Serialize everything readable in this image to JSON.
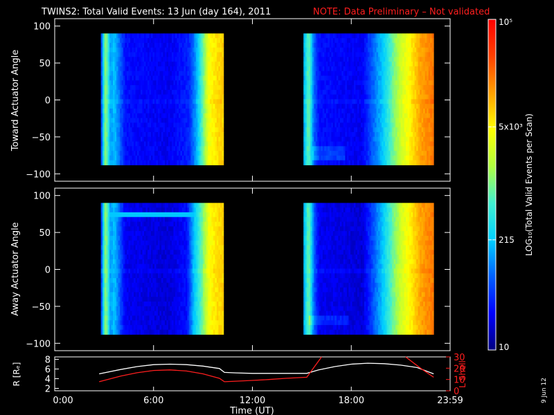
{
  "header": {
    "title": "TWINS2: Total Valid Events: 13 Jun (day 164), 2011",
    "note": "NOTE: Data Preliminary – Not validated"
  },
  "footer": {
    "date_stamp": "9 Jun 12"
  },
  "colors": {
    "note": "#ff1e1e",
    "r_line": "#ffffff",
    "lshell_line": "#ff1e1e",
    "background": "#000000",
    "axes": "#ffffff"
  },
  "chart_data": [
    {
      "type": "heatmap",
      "id": "toward",
      "title": "",
      "xlabel": "",
      "ylabel": "Toward Actuator Angle",
      "xlim": [
        0,
        24
      ],
      "ylim": [
        -110,
        110
      ],
      "y_ticks": [
        -100,
        -50,
        0,
        50,
        100
      ],
      "y_tick_labels": [
        "−100",
        "−50",
        "0",
        "50",
        "100"
      ],
      "data_ylim": [
        -88,
        90
      ],
      "x_ticks": [
        0,
        6,
        12,
        18,
        24
      ],
      "blocks": [
        {
          "start_hour": 2.8,
          "end_hour": 10.25,
          "profile": [
            [
              0,
              1.6
            ],
            [
              0.04,
              3.2
            ],
            [
              0.08,
              2.1
            ],
            [
              0.11,
              2.3
            ],
            [
              0.2,
              1.5
            ],
            [
              0.55,
              1.4
            ],
            [
              0.72,
              1.6
            ],
            [
              0.78,
              2.2
            ],
            [
              0.83,
              2.9
            ],
            [
              0.88,
              3.6
            ],
            [
              0.94,
              3.8
            ],
            [
              1,
              3.9
            ]
          ]
        },
        {
          "start_hour": 15.1,
          "end_hour": 23.0,
          "profile": [
            [
              0,
              2.1
            ],
            [
              0.04,
              3.0
            ],
            [
              0.08,
              1.9
            ],
            [
              0.12,
              1.5
            ],
            [
              0.45,
              1.4
            ],
            [
              0.52,
              1.8
            ],
            [
              0.62,
              2.4
            ],
            [
              0.68,
              2.9
            ],
            [
              0.75,
              3.4
            ],
            [
              0.82,
              3.7
            ],
            [
              0.9,
              4.1
            ],
            [
              1,
              4.3
            ]
          ]
        }
      ],
      "features": [
        {
          "type": "faint_band",
          "angle": 0
        },
        {
          "type": "low_patch",
          "hour_range": [
            15.6,
            17.6
          ],
          "angle_range": [
            -80,
            -60
          ]
        }
      ]
    },
    {
      "type": "heatmap",
      "id": "away",
      "title": "",
      "xlabel": "",
      "ylabel": "Away Actuator Angle",
      "xlim": [
        0,
        24
      ],
      "ylim": [
        -110,
        110
      ],
      "y_ticks": [
        -100,
        -50,
        0,
        50,
        100
      ],
      "y_tick_labels": [
        "−100",
        "−50",
        "0",
        "50",
        "100"
      ],
      "data_ylim": [
        -88,
        90
      ],
      "x_ticks": [
        0,
        6,
        12,
        18,
        24
      ],
      "blocks": [
        {
          "start_hour": 2.8,
          "end_hour": 10.25,
          "profile": [
            [
              0,
              1.6
            ],
            [
              0.04,
              3.2
            ],
            [
              0.08,
              2.1
            ],
            [
              0.11,
              2.3
            ],
            [
              0.2,
              1.4
            ],
            [
              0.55,
              1.3
            ],
            [
              0.7,
              1.5
            ],
            [
              0.76,
              2.3
            ],
            [
              0.83,
              3.0
            ],
            [
              0.88,
              3.6
            ],
            [
              0.94,
              3.8
            ],
            [
              1,
              3.9
            ]
          ]
        },
        {
          "start_hour": 15.1,
          "end_hour": 23.0,
          "profile": [
            [
              0,
              2.1
            ],
            [
              0.04,
              3.0
            ],
            [
              0.08,
              1.9
            ],
            [
              0.12,
              1.4
            ],
            [
              0.45,
              1.3
            ],
            [
              0.52,
              1.7
            ],
            [
              0.62,
              2.4
            ],
            [
              0.68,
              2.9
            ],
            [
              0.75,
              3.4
            ],
            [
              0.82,
              3.7
            ],
            [
              0.9,
              4.1
            ],
            [
              1,
              4.3
            ]
          ]
        }
      ],
      "features": [
        {
          "type": "bright_band",
          "hour_range": [
            3.2,
            9.2
          ],
          "angle": 75
        },
        {
          "type": "faint_band",
          "angle": 0
        },
        {
          "type": "low_patch",
          "hour_range": [
            15.4,
            17.8
          ],
          "angle_range": [
            -78,
            -60
          ]
        }
      ]
    },
    {
      "type": "line",
      "id": "orbit",
      "title": "",
      "xlabel": "Time (UT)",
      "x_tick_labels": [
        "0:00",
        "6:00",
        "12:00",
        "18:00",
        "23:59"
      ],
      "x_ticks": [
        0,
        6,
        12,
        18,
        24
      ],
      "xlim": [
        0,
        24
      ],
      "y_left": {
        "label": "R [Rₑ]",
        "ylim": [
          1.5,
          8.5
        ],
        "ticks": [
          2,
          4,
          6,
          8
        ]
      },
      "y_right": {
        "label": "L Shell",
        "ylim": [
          0,
          30
        ],
        "ticks": [
          0,
          10,
          20,
          30
        ]
      },
      "series": [
        {
          "name": "R [Rₑ]",
          "axis": "left",
          "x": [
            2.7,
            4,
            5,
            6,
            7,
            8,
            9,
            10,
            10.3,
            11,
            12,
            13,
            14,
            15.3,
            16,
            17,
            18,
            19,
            20,
            21,
            22,
            23
          ],
          "y": [
            5.0,
            5.9,
            6.5,
            6.9,
            7.0,
            6.9,
            6.6,
            6.1,
            5.3,
            5.2,
            5.1,
            5.1,
            5.1,
            5.1,
            5.8,
            6.5,
            7.0,
            7.2,
            7.1,
            6.8,
            6.3,
            5.0
          ]
        },
        {
          "name": "L Shell",
          "axis": "right",
          "segments": [
            {
              "x": [
                2.7,
                4,
                5,
                6,
                7,
                8,
                9,
                10,
                10.3,
                11,
                12,
                13,
                14,
                15.3,
                16.2
              ],
              "y": [
                8,
                13,
                16,
                18,
                18.5,
                17.5,
                15,
                11,
                8,
                8.5,
                9.2,
                10,
                11,
                12,
                30
              ]
            },
            {
              "x": [
                21.3,
                22.2,
                23
              ],
              "y": [
                30,
                20,
                12
              ]
            }
          ]
        }
      ]
    }
  ],
  "colorbar": {
    "label": "LOG₁₀(Total Valid Events per Scan)",
    "range": [
      10,
      100000
    ],
    "ticks": [
      10,
      215,
      5000,
      100000
    ],
    "tick_labels": [
      "10",
      "215",
      "5x10³",
      "10⁵"
    ],
    "colormap": [
      "#000080",
      "#0000ff",
      "#0060ff",
      "#00d0ff",
      "#40f0d0",
      "#b0ff40",
      "#ffff00",
      "#ffa000",
      "#ff4000",
      "#ff0000"
    ]
  }
}
